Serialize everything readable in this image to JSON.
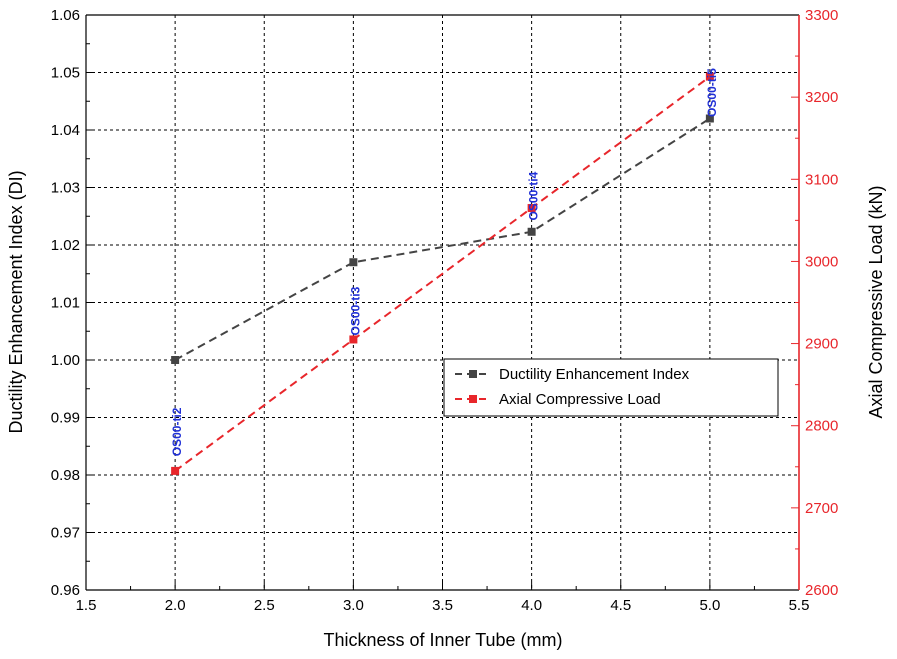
{
  "chart_data": {
    "type": "line",
    "x": [
      2.0,
      3.0,
      4.0,
      5.0
    ],
    "xlabel": "Thickness of Inner Tube (mm)",
    "xlim": [
      1.5,
      5.5
    ],
    "xticks": [
      "1.5",
      "2.0",
      "2.5",
      "3.0",
      "3.5",
      "4.0",
      "4.5",
      "5.0",
      "5.5"
    ],
    "ylabel_left": "Ductility Enhancement Index (DI)",
    "ylim_left": [
      0.96,
      1.06
    ],
    "yticks_left": [
      "0.96",
      "0.97",
      "0.98",
      "0.99",
      "1.00",
      "1.01",
      "1.02",
      "1.03",
      "1.04",
      "1.05",
      "1.06"
    ],
    "ylabel_right": "Axial Compressive Load (kN)",
    "ylim_right": [
      2600,
      3300
    ],
    "yticks_right": [
      "2600",
      "2700",
      "2800",
      "2900",
      "3000",
      "3100",
      "3200",
      "3300"
    ],
    "grid": true,
    "legend_position": "center-right",
    "series": [
      {
        "name": "Ductility Enhancement Index",
        "axis": "left",
        "color": "#444444",
        "values": [
          1.0,
          1.017,
          1.0223,
          1.042
        ]
      },
      {
        "name": "Axial Compressive Load",
        "axis": "right",
        "color": "#e8262b",
        "values": [
          2745,
          2905,
          3065,
          3225
        ]
      }
    ],
    "point_labels": [
      "OS00-ti2",
      "OS00-ti3",
      "OS00-ti4",
      "OS00-ti5"
    ],
    "label_color": "#1f2fd6",
    "right_axis_color": "#e8262b"
  }
}
